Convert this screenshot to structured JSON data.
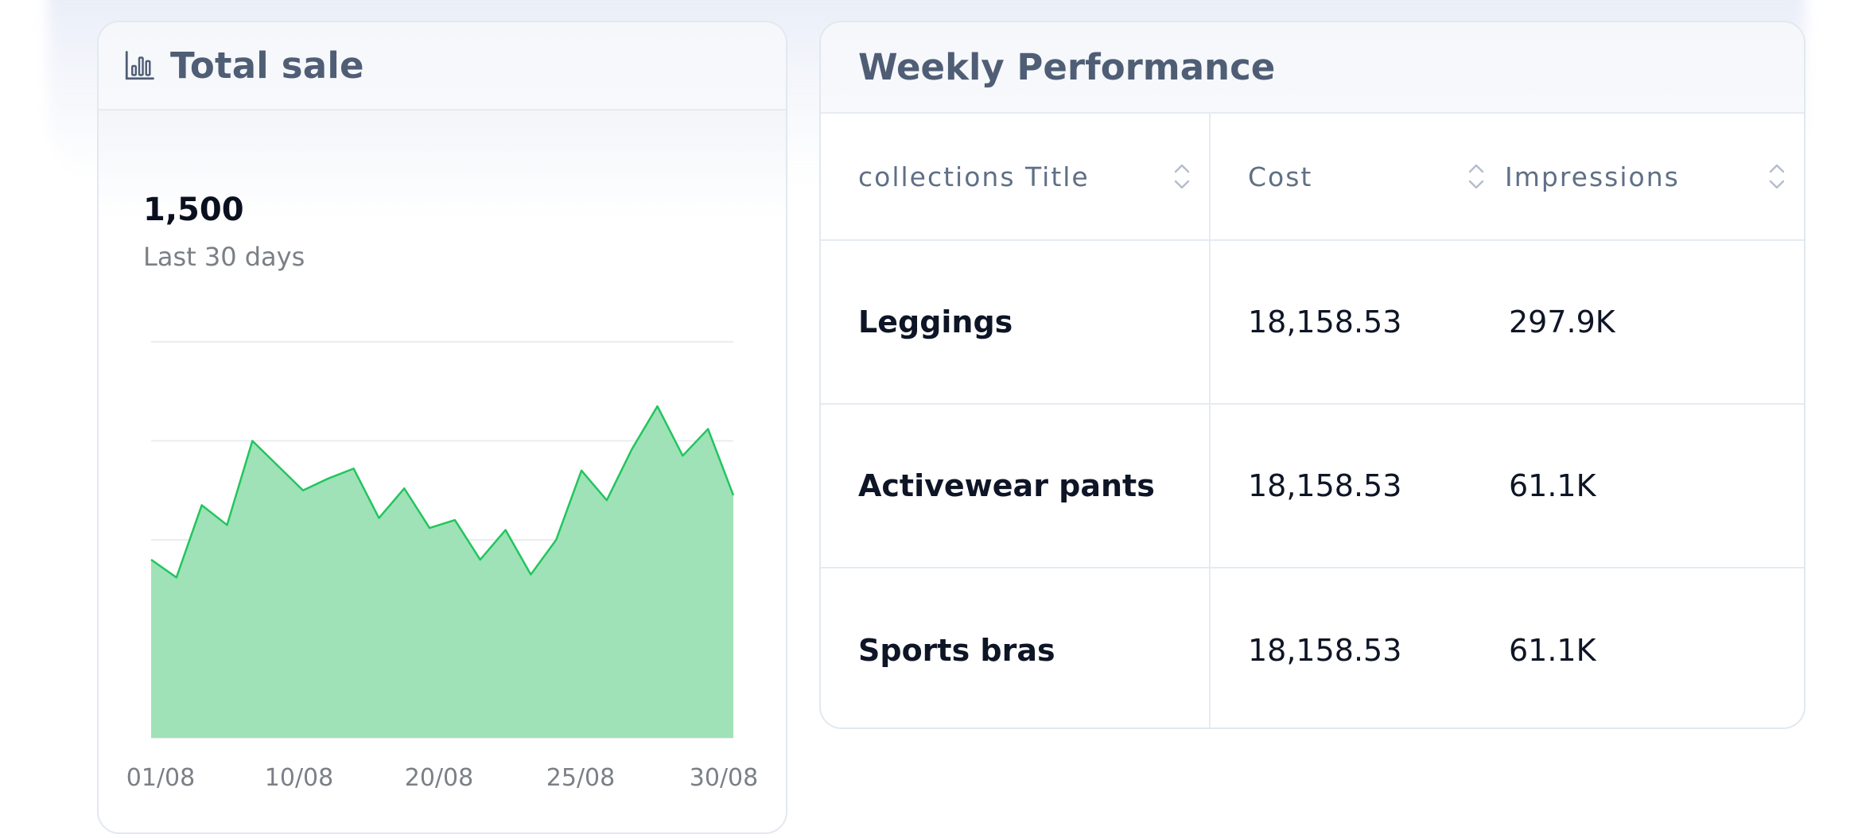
{
  "total_sale": {
    "title": "Total sale",
    "icon": "bar-chart-icon",
    "metric_value": "1,500",
    "metric_period": "Last 30 days"
  },
  "chart_data": {
    "type": "area",
    "color": "#22c55e",
    "fill_color": "#9fe2b7",
    "grid": true,
    "x_tick_labels": [
      "01/08",
      "10/08",
      "20/08",
      "25/08",
      "30/08"
    ],
    "values": [
      18,
      16.2,
      23.5,
      21.5,
      30,
      27.5,
      25,
      26.2,
      27.2,
      22.2,
      25.2,
      21.2,
      22,
      18,
      21,
      16.5,
      20,
      27,
      24,
      29.2,
      33.5,
      28.5,
      31.2,
      24.5
    ],
    "ylim": [
      0,
      40
    ]
  },
  "weekly": {
    "title": "Weekly Performance",
    "columns": [
      {
        "label": "collections Title",
        "icon": "sort-icon"
      },
      {
        "label": "Cost",
        "icon": "sort-icon"
      },
      {
        "label": "Impressions",
        "icon": "sort-icon"
      }
    ],
    "rows": [
      {
        "title": "Leggings",
        "cost": "18,158.53",
        "impressions": "297.9K"
      },
      {
        "title": "Activewear pants",
        "cost": "18,158.53",
        "impressions": "61.1K"
      },
      {
        "title": "Sports bras",
        "cost": "18,158.53",
        "impressions": "61.1K"
      }
    ]
  }
}
